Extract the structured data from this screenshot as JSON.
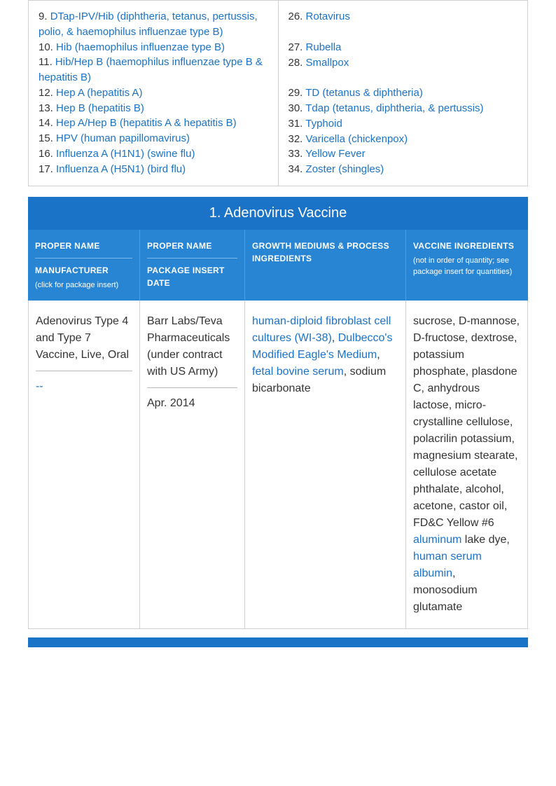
{
  "list_left": [
    {
      "num": "9.",
      "text": "DTap-IPV/Hib (diphtheria, tetanus, pertussis, polio, & haemophilus influenzae type B)"
    },
    {
      "num": "10.",
      "text": "Hib (haemophilus influenzae type B)"
    },
    {
      "num": "11.",
      "text": "Hib/Hep B (haemophilus influenzae type B & hepatitis B)"
    },
    {
      "num": "12.",
      "text": "Hep A (hepatitis A)"
    },
    {
      "num": "13.",
      "text": "Hep B (hepatitis B)"
    },
    {
      "num": "14.",
      "text": "Hep A/Hep B (hepatitis A & hepatitis B)"
    },
    {
      "num": "15.",
      "text": "HPV (human papillomavirus)"
    },
    {
      "num": "16.",
      "text": "Influenza A (H1N1) (swine flu)"
    },
    {
      "num": "17.",
      "text": "Influenza A (H5N1) (bird flu)"
    }
  ],
  "list_right": [
    {
      "num": "26.",
      "text": "Rotavirus",
      "gap_after": true
    },
    {
      "num": "27.",
      "text": "Rubella"
    },
    {
      "num": "28.",
      "text": "Smallpox",
      "gap_after": true
    },
    {
      "num": "29.",
      "text": "TD (tetanus & diphtheria)"
    },
    {
      "num": "30.",
      "text": "Tdap (tetanus, diphtheria, & pertussis)"
    },
    {
      "num": "31.",
      "text": "Typhoid"
    },
    {
      "num": "32.",
      "text": "Varicella (chickenpox)"
    },
    {
      "num": "33.",
      "text": "Yellow Fever"
    },
    {
      "num": "34.",
      "text": "Zoster (shingles)"
    }
  ],
  "section_title": "1. Adenovirus Vaccine",
  "headers": {
    "col1_a": "PROPER NAME",
    "col1_b": "MANUFACTURER",
    "col1_c": "(click for package insert)",
    "col2_a": "PROPER NAME",
    "col2_b": "PACKAGE INSERT DATE",
    "col3": "GROWTH MEDIUMS & PROCESS INGREDIENTS",
    "col4_a": "VACCINE INGREDIENTS",
    "col4_b": "(not in order of quantity; see package insert for quantities)"
  },
  "row": {
    "col1_a": "Adenovirus Type 4 and Type 7 Vaccine, Live, Oral",
    "col1_b": "--",
    "col2_a": "Barr Labs/Teva Pharmaceuticals (under contract with US Army)",
    "col2_b": "Apr. 2014",
    "col3_links": [
      "human-diploid fibroblast cell cultures (WI-38)",
      "Dulbecco's Modified Eagle's Medium",
      "fetal bovine serum"
    ],
    "col3_plain_middle": ", ",
    "col3_plain_end": ", sodium bicarbonate",
    "col4_pre": "sucrose, D-mannose, D-fructose, dextrose, potassium phosphate, plasdone C, anhydrous lactose, micro-crystalline cellulose, polacrilin potassium, magnesium stearate, cellulose acetate phthalate, alcohol, acetone, castor oil, FD&C Yellow #6 ",
    "col4_link1": "aluminum",
    "col4_mid": " lake dye, ",
    "col4_link2": "human serum albumin",
    "col4_post": ", monosodium glutamate"
  }
}
